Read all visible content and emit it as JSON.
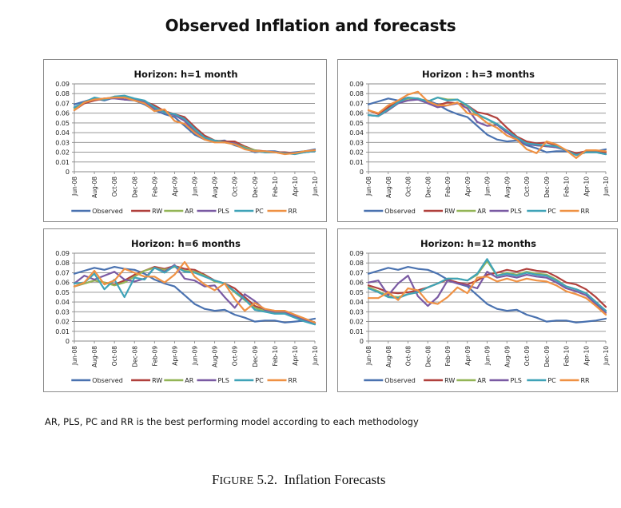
{
  "title": "Observed Inflation and forecasts",
  "note": "AR, PLS, PC and RR is the best performing model according to each methodology",
  "caption": {
    "prefix_cap": "F",
    "prefix_small": "IGURE",
    "number": "5.2.",
    "text": "Inflation Forecasts"
  },
  "series_colors": {
    "Observed": "#4a72b0",
    "RW": "#b0403c",
    "AR": "#93b556",
    "PLS": "#7a5aa3",
    "PC": "#3fa3b8",
    "RR": "#ef9143"
  },
  "chart_data": [
    {
      "type": "line",
      "title": "Horizon:  h=1 month",
      "xlabel": "",
      "ylabel": "",
      "ylim": [
        0,
        0.09
      ],
      "yticks": [
        "0",
        "0.01",
        "0.02",
        "0.03",
        "0.04",
        "0.05",
        "0.06",
        "0.07",
        "0.08",
        "0.09"
      ],
      "grid": true,
      "legend": "bottom",
      "x": [
        "Jun-08",
        "Jul-08",
        "Aug-08",
        "Sep-08",
        "Oct-08",
        "Nov-08",
        "Dec-08",
        "Jan-09",
        "Feb-09",
        "Mar-09",
        "Apr-09",
        "May-09",
        "Jun-09",
        "Jul-09",
        "Aug-09",
        "Sep-09",
        "Oct-09",
        "Nov-09",
        "Dec-09",
        "Jan-10",
        "Feb-10",
        "Mar-10",
        "Apr-10",
        "May-10",
        "Jun-10"
      ],
      "xticks": [
        "Jun-08",
        "Aug-08",
        "Oct-08",
        "Dec-08",
        "Feb-09",
        "Apr-09",
        "Jun-09",
        "Aug-09",
        "Oct-09",
        "Dec-09",
        "Feb-10",
        "Apr-10",
        "Jun-10"
      ],
      "series": [
        {
          "name": "Observed",
          "values": [
            0.069,
            0.072,
            0.075,
            0.073,
            0.076,
            0.074,
            0.073,
            0.069,
            0.063,
            0.059,
            0.056,
            0.047,
            0.038,
            0.033,
            0.031,
            0.032,
            0.027,
            0.024,
            0.02,
            0.021,
            0.021,
            0.019,
            0.02,
            0.021,
            0.023
          ]
        },
        {
          "name": "RW",
          "values": [
            0.063,
            0.07,
            0.073,
            0.075,
            0.076,
            0.074,
            0.074,
            0.072,
            0.068,
            0.062,
            0.059,
            0.056,
            0.046,
            0.037,
            0.032,
            0.031,
            0.031,
            0.026,
            0.022,
            0.021,
            0.02,
            0.02,
            0.019,
            0.021,
            0.022
          ]
        },
        {
          "name": "AR",
          "values": [
            0.065,
            0.071,
            0.075,
            0.074,
            0.077,
            0.077,
            0.074,
            0.072,
            0.066,
            0.061,
            0.058,
            0.053,
            0.043,
            0.035,
            0.032,
            0.03,
            0.029,
            0.025,
            0.022,
            0.02,
            0.02,
            0.019,
            0.019,
            0.021,
            0.021
          ]
        },
        {
          "name": "PLS",
          "values": [
            0.066,
            0.071,
            0.074,
            0.075,
            0.075,
            0.074,
            0.074,
            0.071,
            0.065,
            0.061,
            0.058,
            0.052,
            0.041,
            0.034,
            0.031,
            0.03,
            0.029,
            0.024,
            0.021,
            0.02,
            0.02,
            0.019,
            0.019,
            0.02,
            0.021
          ]
        },
        {
          "name": "PC",
          "values": [
            0.066,
            0.071,
            0.076,
            0.074,
            0.077,
            0.078,
            0.075,
            0.073,
            0.066,
            0.061,
            0.059,
            0.054,
            0.044,
            0.035,
            0.032,
            0.03,
            0.028,
            0.024,
            0.021,
            0.02,
            0.02,
            0.019,
            0.018,
            0.02,
            0.021
          ]
        },
        {
          "name": "RR",
          "values": [
            0.063,
            0.071,
            0.074,
            0.075,
            0.076,
            0.076,
            0.073,
            0.07,
            0.062,
            0.064,
            0.052,
            0.049,
            0.04,
            0.033,
            0.03,
            0.03,
            0.028,
            0.023,
            0.021,
            0.021,
            0.02,
            0.018,
            0.019,
            0.021,
            0.022
          ]
        }
      ]
    },
    {
      "type": "line",
      "title": "Horizon : h=3 months",
      "xlabel": "",
      "ylabel": "",
      "ylim": [
        0,
        0.09
      ],
      "yticks": [
        "0",
        "0.01",
        "0.02",
        "0.03",
        "0.04",
        "0.05",
        "0.06",
        "0.07",
        "0.08",
        "0.09"
      ],
      "grid": true,
      "legend": "bottom",
      "x": [
        "Jun-08",
        "Jul-08",
        "Aug-08",
        "Sep-08",
        "Oct-08",
        "Nov-08",
        "Dec-08",
        "Jan-09",
        "Feb-09",
        "Mar-09",
        "Apr-09",
        "May-09",
        "Jun-09",
        "Jul-09",
        "Aug-09",
        "Sep-09",
        "Oct-09",
        "Nov-09",
        "Dec-09",
        "Jan-10",
        "Feb-10",
        "Mar-10",
        "Apr-10",
        "May-10",
        "Jun-10"
      ],
      "xticks": [
        "Jun-08",
        "Aug-08",
        "Oct-08",
        "Dec-08",
        "Feb-09",
        "Apr-09",
        "Jun-09",
        "Aug-09",
        "Oct-09",
        "Dec-09",
        "Feb-10",
        "Apr-10",
        "Jun-10"
      ],
      "series": [
        {
          "name": "Observed",
          "values": [
            0.069,
            0.072,
            0.075,
            0.073,
            0.076,
            0.074,
            0.073,
            0.069,
            0.063,
            0.059,
            0.056,
            0.047,
            0.038,
            0.033,
            0.031,
            0.032,
            0.027,
            0.024,
            0.02,
            0.021,
            0.021,
            0.019,
            0.02,
            0.021,
            0.023
          ]
        },
        {
          "name": "RW",
          "values": [
            0.063,
            0.059,
            0.066,
            0.072,
            0.075,
            0.075,
            0.072,
            0.068,
            0.071,
            0.07,
            0.068,
            0.061,
            0.059,
            0.055,
            0.045,
            0.036,
            0.031,
            0.029,
            0.03,
            0.027,
            0.022,
            0.019,
            0.021,
            0.021,
            0.02
          ]
        },
        {
          "name": "AR",
          "values": [
            0.058,
            0.057,
            0.063,
            0.07,
            0.075,
            0.075,
            0.072,
            0.076,
            0.074,
            0.074,
            0.067,
            0.058,
            0.054,
            0.048,
            0.041,
            0.034,
            0.029,
            0.027,
            0.026,
            0.025,
            0.022,
            0.017,
            0.02,
            0.02,
            0.018
          ]
        },
        {
          "name": "PLS",
          "values": [
            0.058,
            0.057,
            0.063,
            0.07,
            0.073,
            0.074,
            0.07,
            0.066,
            0.068,
            0.07,
            0.065,
            0.051,
            0.047,
            0.048,
            0.04,
            0.034,
            0.028,
            0.027,
            0.026,
            0.025,
            0.022,
            0.017,
            0.02,
            0.02,
            0.018
          ]
        },
        {
          "name": "PC",
          "values": [
            0.058,
            0.057,
            0.064,
            0.071,
            0.076,
            0.075,
            0.072,
            0.076,
            0.073,
            0.074,
            0.068,
            0.059,
            0.054,
            0.049,
            0.042,
            0.035,
            0.029,
            0.028,
            0.027,
            0.026,
            0.022,
            0.017,
            0.02,
            0.02,
            0.018
          ]
        },
        {
          "name": "RR",
          "values": [
            0.063,
            0.06,
            0.068,
            0.073,
            0.079,
            0.082,
            0.072,
            0.068,
            0.068,
            0.071,
            0.06,
            0.058,
            0.05,
            0.045,
            0.037,
            0.033,
            0.023,
            0.019,
            0.031,
            0.028,
            0.022,
            0.014,
            0.022,
            0.022,
            0.021
          ]
        }
      ]
    },
    {
      "type": "line",
      "title": "Horizon:  h=6 months",
      "xlabel": "",
      "ylabel": "",
      "ylim": [
        0,
        0.09
      ],
      "yticks": [
        "0",
        "0.01",
        "0.02",
        "0.03",
        "0.04",
        "0.05",
        "0.06",
        "0.07",
        "0.08",
        "0.09"
      ],
      "grid": true,
      "legend": "bottom",
      "x": [
        "Jun-08",
        "Jul-08",
        "Aug-08",
        "Sep-08",
        "Oct-08",
        "Nov-08",
        "Dec-08",
        "Jan-09",
        "Feb-09",
        "Mar-09",
        "Apr-09",
        "May-09",
        "Jun-09",
        "Jul-09",
        "Aug-09",
        "Sep-09",
        "Oct-09",
        "Nov-09",
        "Dec-09",
        "Jan-10",
        "Feb-10",
        "Mar-10",
        "Apr-10",
        "May-10",
        "Jun-10"
      ],
      "xticks": [
        "Jun-08",
        "Aug-08",
        "Oct-08",
        "Dec-08",
        "Feb-09",
        "Apr-09",
        "Jun-09",
        "Aug-09",
        "Oct-09",
        "Dec-09",
        "Feb-10",
        "Apr-10",
        "Jun-10"
      ],
      "series": [
        {
          "name": "Observed",
          "values": [
            0.069,
            0.072,
            0.075,
            0.073,
            0.076,
            0.074,
            0.073,
            0.069,
            0.063,
            0.059,
            0.056,
            0.047,
            0.038,
            0.033,
            0.031,
            0.032,
            0.027,
            0.024,
            0.02,
            0.021,
            0.021,
            0.019,
            0.02,
            0.021,
            0.023
          ]
        },
        {
          "name": "RW",
          "values": [
            0.056,
            0.059,
            0.062,
            0.06,
            0.058,
            0.062,
            0.068,
            0.072,
            0.076,
            0.074,
            0.077,
            0.074,
            0.073,
            0.068,
            0.062,
            0.059,
            0.054,
            0.045,
            0.036,
            0.032,
            0.031,
            0.03,
            0.026,
            0.022,
            0.019
          ]
        },
        {
          "name": "AR",
          "values": [
            0.056,
            0.059,
            0.062,
            0.06,
            0.057,
            0.06,
            0.066,
            0.072,
            0.075,
            0.073,
            0.076,
            0.072,
            0.071,
            0.067,
            0.061,
            0.059,
            0.05,
            0.042,
            0.034,
            0.031,
            0.029,
            0.029,
            0.025,
            0.021,
            0.018
          ]
        },
        {
          "name": "PLS",
          "values": [
            0.059,
            0.067,
            0.063,
            0.067,
            0.071,
            0.063,
            0.061,
            0.064,
            0.075,
            0.071,
            0.078,
            0.064,
            0.062,
            0.056,
            0.057,
            0.045,
            0.034,
            0.048,
            0.041,
            0.032,
            0.03,
            0.03,
            0.025,
            0.021,
            0.018
          ]
        },
        {
          "name": "PC",
          "values": [
            0.059,
            0.06,
            0.069,
            0.053,
            0.063,
            0.045,
            0.065,
            0.063,
            0.075,
            0.07,
            0.077,
            0.071,
            0.07,
            0.066,
            0.062,
            0.059,
            0.051,
            0.043,
            0.032,
            0.03,
            0.028,
            0.028,
            0.024,
            0.02,
            0.017
          ]
        },
        {
          "name": "RR",
          "values": [
            0.056,
            0.06,
            0.072,
            0.058,
            0.062,
            0.074,
            0.07,
            0.066,
            0.066,
            0.06,
            0.068,
            0.081,
            0.066,
            0.058,
            0.052,
            0.059,
            0.043,
            0.031,
            0.039,
            0.033,
            0.031,
            0.031,
            0.027,
            0.023,
            0.019
          ]
        }
      ]
    },
    {
      "type": "line",
      "title": "Horizon:  h=12 months",
      "xlabel": "",
      "ylabel": "",
      "ylim": [
        0,
        0.09
      ],
      "yticks": [
        "0",
        "0.01",
        "0.02",
        "0.03",
        "0.04",
        "0.05",
        "0.06",
        "0.07",
        "0.08",
        "0.09"
      ],
      "grid": true,
      "legend": "bottom",
      "x": [
        "Jun-08",
        "Jul-08",
        "Aug-08",
        "Sep-08",
        "Oct-08",
        "Nov-08",
        "Dec-08",
        "Jan-09",
        "Feb-09",
        "Mar-09",
        "Apr-09",
        "May-09",
        "Jun-09",
        "Jul-09",
        "Aug-09",
        "Sep-09",
        "Oct-09",
        "Nov-09",
        "Dec-09",
        "Jan-10",
        "Feb-10",
        "Mar-10",
        "Apr-10",
        "May-10",
        "Jun-10"
      ],
      "xticks": [
        "Jun-08",
        "Aug-08",
        "Oct-08",
        "Dec-08",
        "Feb-09",
        "Apr-09",
        "Jun-09",
        "Aug-09",
        "Oct-09",
        "Dec-09",
        "Feb-10",
        "Apr-10",
        "Jun-10"
      ],
      "series": [
        {
          "name": "Observed",
          "values": [
            0.069,
            0.072,
            0.075,
            0.073,
            0.076,
            0.074,
            0.073,
            0.069,
            0.063,
            0.059,
            0.056,
            0.047,
            0.038,
            0.033,
            0.031,
            0.032,
            0.027,
            0.024,
            0.02,
            0.021,
            0.021,
            0.019,
            0.02,
            0.021,
            0.023
          ]
        },
        {
          "name": "RW",
          "values": [
            0.057,
            0.054,
            0.05,
            0.049,
            0.05,
            0.052,
            0.055,
            0.059,
            0.063,
            0.06,
            0.058,
            0.062,
            0.068,
            0.07,
            0.073,
            0.071,
            0.074,
            0.072,
            0.071,
            0.066,
            0.06,
            0.058,
            0.053,
            0.045,
            0.035
          ]
        },
        {
          "name": "AR",
          "values": [
            0.055,
            0.051,
            0.046,
            0.045,
            0.048,
            0.05,
            0.055,
            0.059,
            0.064,
            0.064,
            0.062,
            0.068,
            0.082,
            0.067,
            0.07,
            0.068,
            0.071,
            0.069,
            0.068,
            0.063,
            0.056,
            0.053,
            0.049,
            0.04,
            0.031
          ]
        },
        {
          "name": "PLS",
          "values": [
            0.06,
            0.062,
            0.047,
            0.059,
            0.067,
            0.046,
            0.036,
            0.045,
            0.062,
            0.059,
            0.057,
            0.054,
            0.071,
            0.065,
            0.067,
            0.065,
            0.068,
            0.066,
            0.065,
            0.06,
            0.054,
            0.051,
            0.047,
            0.038,
            0.029
          ]
        },
        {
          "name": "PC",
          "values": [
            0.054,
            0.05,
            0.045,
            0.044,
            0.048,
            0.05,
            0.055,
            0.059,
            0.064,
            0.064,
            0.062,
            0.069,
            0.084,
            0.067,
            0.069,
            0.067,
            0.07,
            0.068,
            0.067,
            0.062,
            0.056,
            0.053,
            0.049,
            0.04,
            0.031
          ]
        },
        {
          "name": "RR",
          "values": [
            0.044,
            0.044,
            0.05,
            0.042,
            0.054,
            0.052,
            0.04,
            0.038,
            0.045,
            0.055,
            0.049,
            0.065,
            0.066,
            0.061,
            0.064,
            0.061,
            0.064,
            0.062,
            0.061,
            0.057,
            0.051,
            0.048,
            0.044,
            0.036,
            0.027
          ]
        }
      ]
    }
  ]
}
